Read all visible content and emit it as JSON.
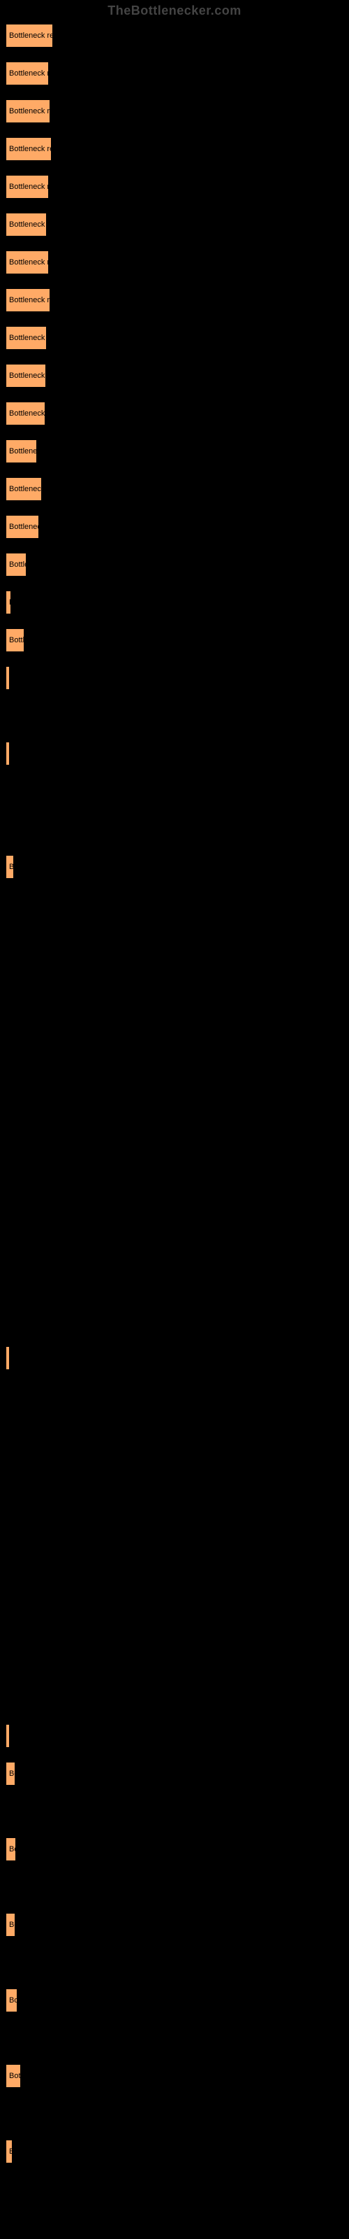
{
  "watermark": "TheBottlenecker.com",
  "chart": {
    "type": "bar",
    "bar_color": "#ffaa66",
    "bar_border": "#000000",
    "background_color": "#000000",
    "label_color": "#000000",
    "label_fontsize": 11,
    "bars": [
      {
        "label": "Bottleneck resu",
        "width": 68
      },
      {
        "label": "Bottleneck res",
        "width": 62
      },
      {
        "label": "Bottleneck res",
        "width": 64
      },
      {
        "label": "Bottleneck res",
        "width": 66
      },
      {
        "label": "Bottleneck res",
        "width": 62
      },
      {
        "label": "Bottleneck re",
        "width": 59
      },
      {
        "label": "Bottleneck res",
        "width": 62
      },
      {
        "label": "Bottleneck res",
        "width": 64
      },
      {
        "label": "Bottleneck re",
        "width": 59
      },
      {
        "label": "Bottleneck re",
        "width": 58
      },
      {
        "label": "Bottleneck re",
        "width": 57
      },
      {
        "label": "Bottleneck",
        "width": 45
      },
      {
        "label": "Bottleneck r",
        "width": 52
      },
      {
        "label": "Bottleneck",
        "width": 48
      },
      {
        "label": "Bottler",
        "width": 30
      },
      {
        "label": "B",
        "width": 8
      },
      {
        "label": "Bottle",
        "width": 27
      },
      {
        "label": "",
        "width": 4
      },
      {
        "label": "",
        "width": 0
      },
      {
        "label": "",
        "width": 4
      },
      {
        "label": "",
        "width": 0
      },
      {
        "label": "",
        "width": 0
      },
      {
        "label": "Bo",
        "width": 12
      },
      {
        "label": "",
        "width": 0
      },
      {
        "label": "",
        "width": 0
      },
      {
        "label": "",
        "width": 0
      },
      {
        "label": "",
        "width": 0
      },
      {
        "label": "",
        "width": 0
      },
      {
        "label": "",
        "width": 0
      },
      {
        "label": "",
        "width": 0
      },
      {
        "label": "",
        "width": 0
      },
      {
        "label": "",
        "width": 0
      },
      {
        "label": "",
        "width": 0
      },
      {
        "label": "",
        "width": 0
      },
      {
        "label": "",
        "width": 0
      },
      {
        "label": "B",
        "width": 5
      },
      {
        "label": "",
        "width": 0
      },
      {
        "label": "",
        "width": 0
      },
      {
        "label": "",
        "width": 0
      },
      {
        "label": "",
        "width": 0
      },
      {
        "label": "",
        "width": 0
      },
      {
        "label": "",
        "width": 0
      },
      {
        "label": "",
        "width": 0
      },
      {
        "label": "",
        "width": 0
      },
      {
        "label": "",
        "width": 0
      },
      {
        "label": "",
        "width": 4
      },
      {
        "label": "Bo",
        "width": 14
      },
      {
        "label": "",
        "width": 0
      },
      {
        "label": "Bo",
        "width": 15
      },
      {
        "label": "",
        "width": 0
      },
      {
        "label": "Bo",
        "width": 14
      },
      {
        "label": "",
        "width": 0
      },
      {
        "label": "Bot",
        "width": 17
      },
      {
        "label": "",
        "width": 0
      },
      {
        "label": "Bott",
        "width": 22
      },
      {
        "label": "",
        "width": 0
      },
      {
        "label": "B",
        "width": 10
      }
    ]
  }
}
